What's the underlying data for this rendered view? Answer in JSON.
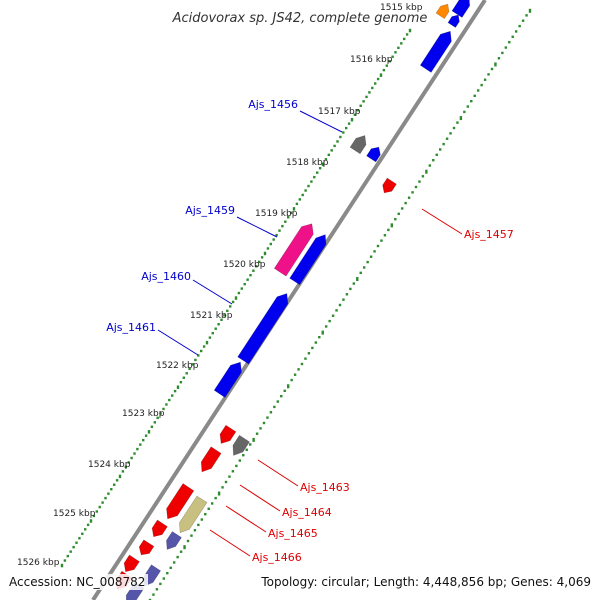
{
  "title": "Acidovorax sp. JS42, complete genome",
  "footer": {
    "accession": "Accession: NC_008782",
    "topology": "Topology: circular; Length: 4,448,856 bp; Genes: 4,069"
  },
  "colors": {
    "backbone": "#8a8a8a",
    "scale_dots": "#2e8b2e",
    "forward_label": "#0000cc",
    "reverse_label": "#dd0000",
    "blue_gene": "#0000ee",
    "red_gene": "#ee0000",
    "gray_gene": "#666666",
    "pink_gene": "#ee1188",
    "khaki_gene": "#c8c080",
    "slate_gene": "#5555aa",
    "orange_gene": "#ff8800"
  },
  "scale": {
    "ticks": [
      "1515 kbp",
      "1516 kbp",
      "1517 kbp",
      "1518 kbp",
      "1519 kbp",
      "1520 kbp",
      "1521 kbp",
      "1522 kbp",
      "1523 kbp",
      "1524 kbp",
      "1525 kbp",
      "1526 kbp"
    ]
  },
  "genes": {
    "forward_labels": [
      "Ajs_1456",
      "Ajs_1459",
      "Ajs_1460",
      "Ajs_1461"
    ],
    "reverse_labels": [
      "Ajs_1457",
      "Ajs_1463",
      "Ajs_1464",
      "Ajs_1465",
      "Ajs_1466"
    ]
  }
}
